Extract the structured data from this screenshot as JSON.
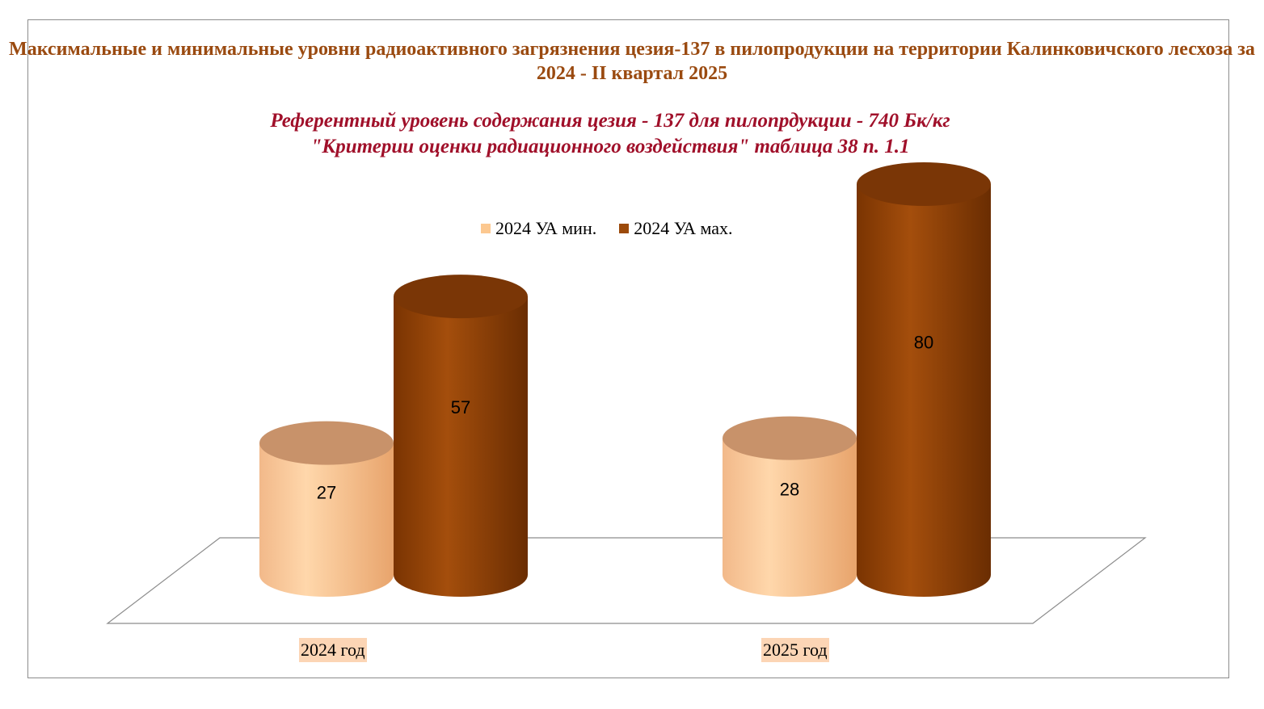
{
  "chart_data": {
    "type": "bar",
    "title": "Максимальные и минимальные уровни радиоактивного загрязнения  цезия-137 в пилопродукции на территории Калинковичского лесхоза за 2024 - II квартал  2025",
    "subtitle_line1": "Референтный уровень содержания цезия - 137 для пилопрдукции - 740 Бк/кг",
    "subtitle_line2": "\"Критерии оценки радиационного воздействия\" таблица 38 п. 1.1",
    "categories": [
      "2024 год",
      "2025 год"
    ],
    "series": [
      {
        "name": "2024 УА мин.",
        "values": [
          27,
          28
        ],
        "color": "#fcc890"
      },
      {
        "name": "2024 УА мах.",
        "values": [
          57,
          80
        ],
        "color": "#9c4a0a"
      }
    ],
    "data_labels": true,
    "legend_position": "top",
    "ylim": [
      0,
      80
    ]
  }
}
